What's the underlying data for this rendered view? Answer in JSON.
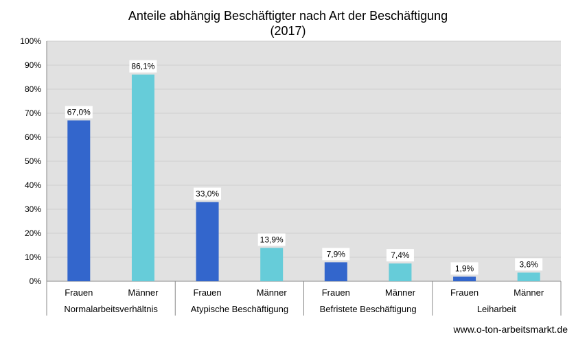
{
  "title_line1": "Anteile abhängig Beschäftigter nach Art der Beschäftigung",
  "title_line2": "(2017)",
  "footer": "www.o-ton-arbeitsmarkt.de",
  "colors": {
    "frauen": "#3366CC",
    "maenner": "#66CCD9",
    "plot_bg": "#E1E1E1",
    "grid": "#CFCFCF"
  },
  "chart_data": {
    "type": "bar",
    "ylim": [
      0,
      100
    ],
    "yticks": [
      "0%",
      "10%",
      "20%",
      "30%",
      "40%",
      "50%",
      "60%",
      "70%",
      "80%",
      "90%",
      "100%"
    ],
    "grid": true,
    "groups": [
      {
        "label": "Normalarbeitsverhältnis",
        "bars": [
          {
            "label": "Frauen",
            "value": 67.0,
            "text": "67,0%"
          },
          {
            "label": "Männer",
            "value": 86.1,
            "text": "86,1%"
          }
        ]
      },
      {
        "label": "Atypische Beschäftigung",
        "bars": [
          {
            "label": "Frauen",
            "value": 33.0,
            "text": "33,0%"
          },
          {
            "label": "Männer",
            "value": 13.9,
            "text": "13,9%"
          }
        ]
      },
      {
        "label": "Befristete Beschäftigung",
        "bars": [
          {
            "label": "Frauen",
            "value": 7.9,
            "text": "7,9%"
          },
          {
            "label": "Männer",
            "value": 7.4,
            "text": "7,4%"
          }
        ]
      },
      {
        "label": "Leiharbeit",
        "bars": [
          {
            "label": "Frauen",
            "value": 1.9,
            "text": "1,9%"
          },
          {
            "label": "Männer",
            "value": 3.6,
            "text": "3,6%"
          }
        ]
      }
    ]
  }
}
